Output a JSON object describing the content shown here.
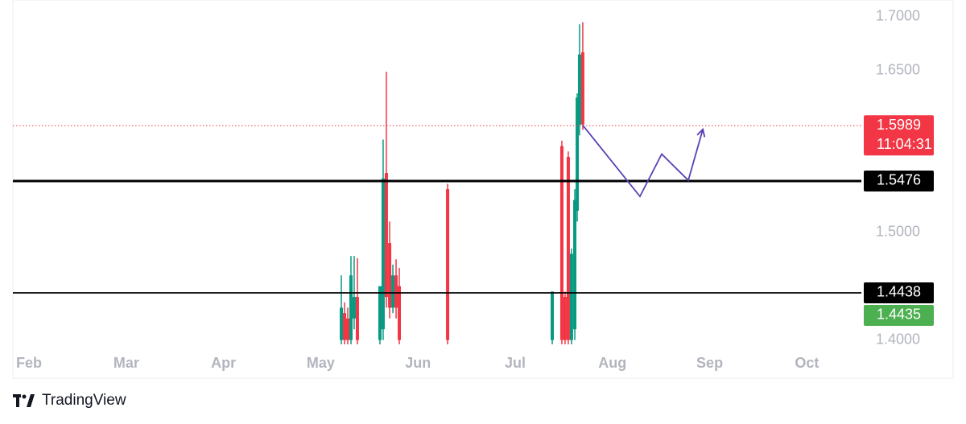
{
  "chart_data": {
    "type": "candlestick",
    "ylim": [
      1.396,
      1.7156
    ],
    "yticks": [
      {
        "value": 1.7,
        "label": "1.7000"
      },
      {
        "value": 1.65,
        "label": "1.6500"
      },
      {
        "value": 1.5,
        "label": "1.5000"
      },
      {
        "value": 1.4,
        "label": "1.4000"
      }
    ],
    "xlim": [
      1.834,
      10.56
    ],
    "xticks": [
      {
        "value": 2,
        "label": "Feb"
      },
      {
        "value": 3,
        "label": "Mar"
      },
      {
        "value": 4,
        "label": "Apr"
      },
      {
        "value": 5,
        "label": "May"
      },
      {
        "value": 6,
        "label": "Jun"
      },
      {
        "value": 7,
        "label": "Jul"
      },
      {
        "value": 8,
        "label": "Aug"
      },
      {
        "value": 9,
        "label": "Sep"
      },
      {
        "value": 10,
        "label": "Oct"
      }
    ],
    "up_color": "#089981",
    "down_color": "#f23645",
    "x": [
      5.212,
      5.245,
      5.278,
      5.311,
      5.344,
      5.377,
      5.609,
      5.642,
      5.675,
      5.709,
      5.742,
      5.775,
      5.808,
      6.305,
      7.381,
      7.48,
      7.513,
      7.546,
      7.579,
      7.613,
      7.638,
      7.662,
      7.695
    ],
    "open": [
      1.4,
      1.425,
      1.42,
      1.4,
      1.42,
      1.44,
      1.4,
      1.41,
      1.555,
      1.49,
      1.43,
      1.46,
      1.45,
      1.54,
      1.4,
      1.58,
      1.44,
      1.57,
      1.4,
      1.41,
      1.52,
      1.6,
      1.667
    ],
    "high": [
      1.46,
      1.435,
      1.43,
      1.478,
      1.478,
      1.476,
      1.449,
      1.586,
      1.649,
      1.51,
      1.47,
      1.475,
      1.467,
      1.545,
      1.445,
      1.585,
      1.445,
      1.575,
      1.485,
      1.54,
      1.629,
      1.693,
      1.695
    ],
    "low": [
      1.396,
      1.396,
      1.396,
      1.396,
      1.41,
      1.396,
      1.396,
      1.4,
      1.43,
      1.42,
      1.425,
      1.42,
      1.396,
      1.396,
      1.396,
      1.396,
      1.396,
      1.396,
      1.396,
      1.4,
      1.51,
      1.59,
      1.595
    ],
    "close": [
      1.43,
      1.4,
      1.4,
      1.46,
      1.44,
      1.4,
      1.45,
      1.55,
      1.44,
      1.43,
      1.46,
      1.43,
      1.4,
      1.4,
      1.445,
      1.4,
      1.4,
      1.4,
      1.48,
      1.53,
      1.625,
      1.665,
      1.6
    ],
    "price_lines": [
      {
        "value": 1.5989,
        "label": "1.5989",
        "countdown": "11:04:31",
        "color": "#f23645",
        "style": "dotted"
      },
      {
        "value": 1.5476,
        "label": "1.5476",
        "color": "#000000",
        "style": "thick"
      },
      {
        "value": 1.4438,
        "label": "1.4438",
        "color": "#000000",
        "style": "solid"
      }
    ],
    "bid_label": {
      "value": 1.4435,
      "label": "1.4435",
      "color": "#4caf50"
    },
    "projection": {
      "color": "#5b3fb5",
      "x": [
        7.695,
        8.283,
        8.507,
        8.78,
        8.93
      ],
      "y": [
        1.5993,
        1.5333,
        1.5726,
        1.5482,
        1.5956
      ]
    },
    "brand": "TradingView"
  }
}
